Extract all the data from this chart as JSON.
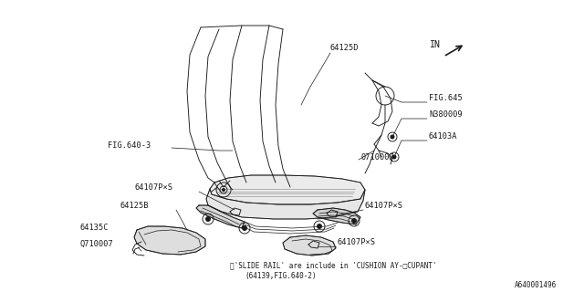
{
  "bg_color": "#ffffff",
  "line_color": "#1a1a1a",
  "text_color": "#1a1a1a",
  "fig_id": "A640001496",
  "footnote_line1": "※'SLIDE RAIL' are include in 'CUSHION AY-□CUPANT'",
  "footnote_line2": "(64139,FIG.640-2)",
  "lw": 0.65,
  "fs": 6.2
}
